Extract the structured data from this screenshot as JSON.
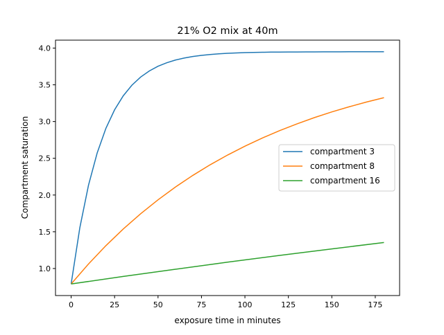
{
  "chart_data": {
    "type": "line",
    "title": "21% O2 mix at 40m",
    "xlabel": "exposure time in minutes",
    "ylabel": "Compartment saturation",
    "xlim": [
      -9,
      189
    ],
    "ylim": [
      0.632,
      4.108
    ],
    "xticks": [
      0,
      25,
      50,
      75,
      100,
      125,
      150,
      175
    ],
    "yticks": [
      1.0,
      1.5,
      2.0,
      2.5,
      3.0,
      3.5,
      4.0
    ],
    "ytick_labels": [
      "1.0",
      "1.5",
      "2.0",
      "2.5",
      "3.0",
      "3.5",
      "4.0"
    ],
    "grid": false,
    "legend_placement": "center-right",
    "series": [
      {
        "name": "compartment 3",
        "color": "#1f77b4",
        "x": [
          0,
          5,
          10,
          15,
          20,
          25,
          30,
          35,
          40,
          45,
          50,
          55,
          60,
          65,
          70,
          75,
          80,
          85,
          90,
          95,
          100,
          105,
          110,
          115,
          120,
          125,
          130,
          135,
          140,
          145,
          150,
          155,
          160,
          165,
          170,
          175,
          180
        ],
        "y": [
          0.79,
          1.555,
          2.135,
          2.574,
          2.908,
          3.16,
          3.351,
          3.496,
          3.606,
          3.689,
          3.753,
          3.8,
          3.837,
          3.864,
          3.885,
          3.901,
          3.913,
          3.922,
          3.929,
          3.934,
          3.938,
          3.941,
          3.943,
          3.945,
          3.946,
          3.947,
          3.947,
          3.948,
          3.948,
          3.949,
          3.949,
          3.949,
          3.95,
          3.95,
          3.95,
          3.95,
          3.95
        ]
      },
      {
        "name": "compartment 8",
        "color": "#ff7f0e",
        "x": [
          0,
          10,
          20,
          30,
          40,
          50,
          60,
          70,
          80,
          90,
          100,
          110,
          120,
          130,
          140,
          150,
          160,
          170,
          180
        ],
        "y": [
          0.79,
          1.062,
          1.311,
          1.538,
          1.745,
          1.935,
          2.109,
          2.267,
          2.412,
          2.544,
          2.665,
          2.776,
          2.877,
          2.969,
          3.054,
          3.131,
          3.201,
          3.266,
          3.325
        ]
      },
      {
        "name": "compartment 16",
        "color": "#2ca02c",
        "x": [
          0,
          30,
          60,
          90,
          120,
          150,
          180
        ],
        "y": [
          0.79,
          0.892,
          0.99,
          1.086,
          1.178,
          1.267,
          1.354
        ]
      }
    ]
  }
}
